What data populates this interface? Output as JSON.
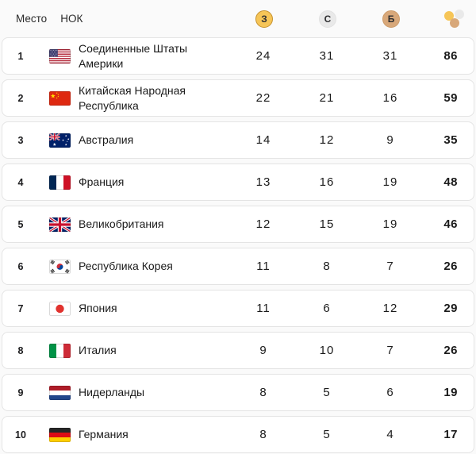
{
  "colors": {
    "gold": "#F6C557",
    "gold_border": "#C6922F",
    "silver": "#E9E9E9",
    "silver_border": "#E2E2E2",
    "bronze": "#D8A87A",
    "bronze_border": "#CD9C6A"
  },
  "header": {
    "place": "Место",
    "noc": "НОК",
    "gold_letter": "З",
    "silver_letter": "С",
    "bronze_letter": "Б"
  },
  "table": {
    "rows": [
      {
        "rank": 1,
        "flag": "us",
        "country": "Соединенные Штаты Америки",
        "gold": 24,
        "silver": 31,
        "bronze": 31,
        "total": 86
      },
      {
        "rank": 2,
        "flag": "cn",
        "country": "Китайская Народная Республика",
        "gold": 22,
        "silver": 21,
        "bronze": 16,
        "total": 59
      },
      {
        "rank": 3,
        "flag": "au",
        "country": "Австралия",
        "gold": 14,
        "silver": 12,
        "bronze": 9,
        "total": 35
      },
      {
        "rank": 4,
        "flag": "fr",
        "country": "Франция",
        "gold": 13,
        "silver": 16,
        "bronze": 19,
        "total": 48
      },
      {
        "rank": 5,
        "flag": "gb",
        "country": "Великобритания",
        "gold": 12,
        "silver": 15,
        "bronze": 19,
        "total": 46
      },
      {
        "rank": 6,
        "flag": "kr",
        "country": "Республика Корея",
        "gold": 11,
        "silver": 8,
        "bronze": 7,
        "total": 26
      },
      {
        "rank": 7,
        "flag": "jp",
        "country": "Япония",
        "gold": 11,
        "silver": 6,
        "bronze": 12,
        "total": 29
      },
      {
        "rank": 8,
        "flag": "it",
        "country": "Италия",
        "gold": 9,
        "silver": 10,
        "bronze": 7,
        "total": 26
      },
      {
        "rank": 9,
        "flag": "nl",
        "country": "Нидерланды",
        "gold": 8,
        "silver": 5,
        "bronze": 6,
        "total": 19
      },
      {
        "rank": 10,
        "flag": "de",
        "country": "Германия",
        "gold": 8,
        "silver": 5,
        "bronze": 4,
        "total": 17
      }
    ]
  }
}
